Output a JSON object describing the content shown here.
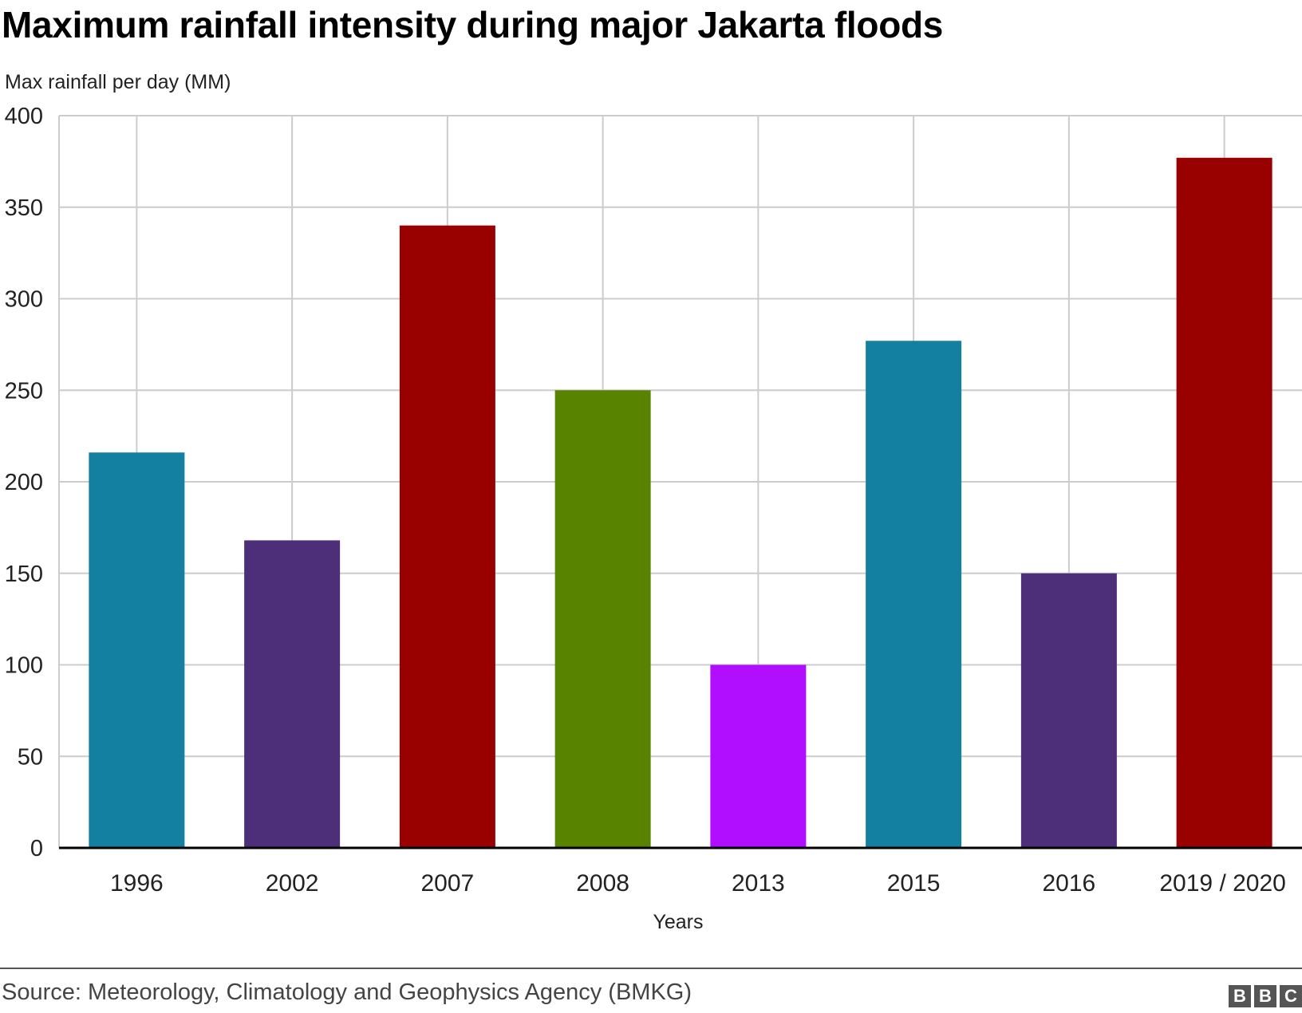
{
  "chart_data": {
    "type": "bar",
    "title": "Maximum rainfall intensity during major Jakarta floods",
    "ylabel": "Max rainfall per day (MM)",
    "xlabel": "Years",
    "categories": [
      "1996",
      "2002",
      "2007",
      "2008",
      "2013",
      "2015",
      "2016",
      "2019 / 2020"
    ],
    "values": [
      216,
      168,
      340,
      250,
      100,
      277,
      150,
      377
    ],
    "colors": [
      "#1380a1",
      "#4d2e78",
      "#990000",
      "#588300",
      "#b10eff",
      "#1380a1",
      "#4d2e78",
      "#990000"
    ],
    "ylim": [
      0,
      400
    ],
    "yticks": [
      0,
      50,
      100,
      150,
      200,
      250,
      300,
      350,
      400
    ],
    "grid": true,
    "legend": "none"
  },
  "footer": {
    "source": "Source: Meteorology, Climatology and Geophysics Agency (BMKG)",
    "logo_letters": [
      "B",
      "B",
      "C"
    ]
  },
  "colors": {
    "grid": "#cccccc",
    "axis": "#000000",
    "text": "#222222"
  }
}
